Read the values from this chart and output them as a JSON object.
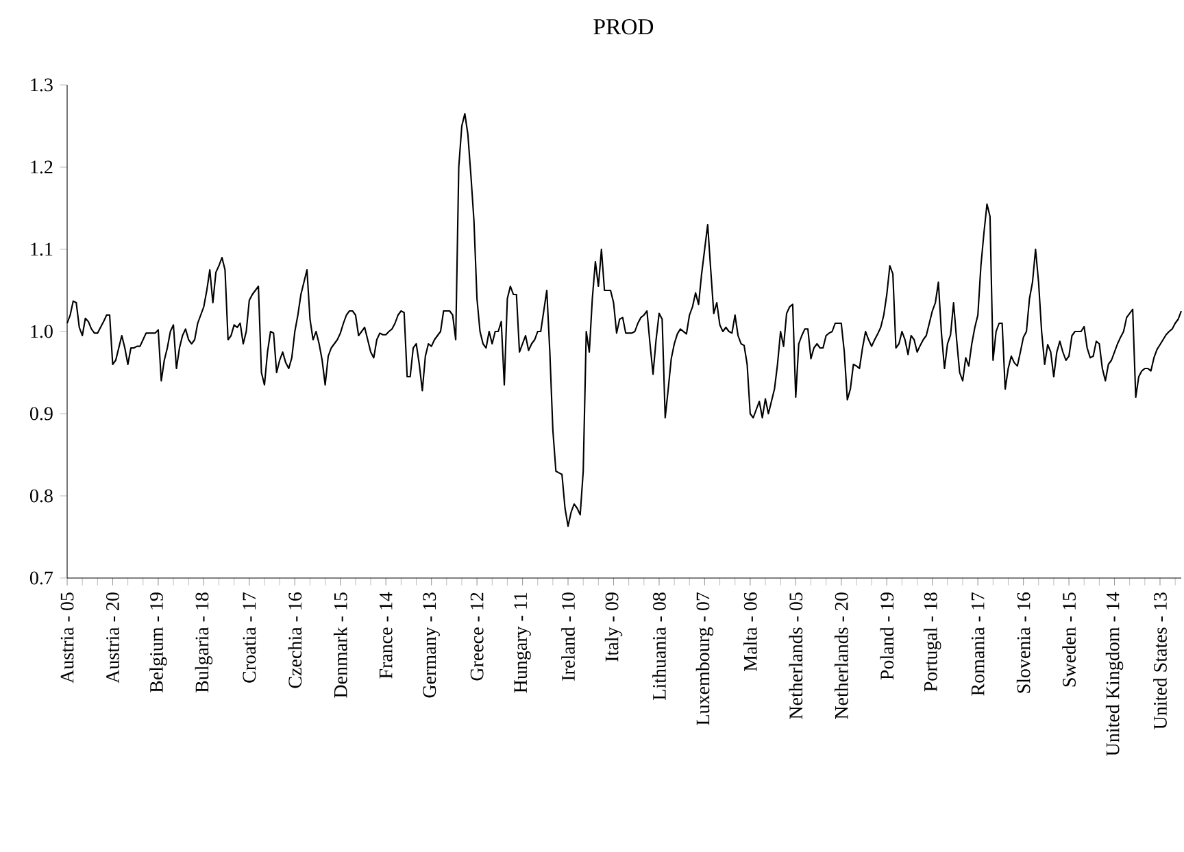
{
  "chart_data": {
    "type": "line",
    "title": "PROD",
    "color": "#000000",
    "categories": [
      "Austria - 05",
      null,
      null,
      null,
      null,
      null,
      null,
      null,
      null,
      null,
      null,
      null,
      null,
      null,
      null,
      "Austria - 20",
      null,
      null,
      null,
      null,
      null,
      null,
      null,
      null,
      null,
      null,
      null,
      null,
      null,
      null,
      "Belgium - 19",
      null,
      null,
      null,
      null,
      null,
      null,
      null,
      null,
      null,
      null,
      null,
      null,
      null,
      null,
      "Bulgaria - 18",
      null,
      null,
      null,
      null,
      null,
      null,
      null,
      null,
      null,
      null,
      null,
      null,
      null,
      null,
      "Croatia - 17",
      null,
      null,
      null,
      null,
      null,
      null,
      null,
      null,
      null,
      null,
      null,
      null,
      null,
      null,
      "Czechia - 16",
      null,
      null,
      null,
      null,
      null,
      null,
      null,
      null,
      null,
      null,
      null,
      null,
      null,
      null,
      "Denmark - 15",
      null,
      null,
      null,
      null,
      null,
      null,
      null,
      null,
      null,
      null,
      null,
      null,
      null,
      null,
      "France - 14",
      null,
      null,
      null,
      null,
      null,
      null,
      null,
      null,
      null,
      null,
      null,
      null,
      null,
      null,
      "Germany - 13",
      null,
      null,
      null,
      null,
      null,
      null,
      null,
      null,
      null,
      null,
      null,
      null,
      null,
      null,
      "Greece - 12",
      null,
      null,
      null,
      null,
      null,
      null,
      null,
      null,
      null,
      null,
      null,
      null,
      null,
      null,
      "Hungary - 11",
      null,
      null,
      null,
      null,
      null,
      null,
      null,
      null,
      null,
      null,
      null,
      null,
      null,
      null,
      "Ireland - 10",
      null,
      null,
      null,
      null,
      null,
      null,
      null,
      null,
      null,
      null,
      null,
      null,
      null,
      null,
      "Italy - 09",
      null,
      null,
      null,
      null,
      null,
      null,
      null,
      null,
      null,
      null,
      null,
      null,
      null,
      null,
      "Lithuania - 08",
      null,
      null,
      null,
      null,
      null,
      null,
      null,
      null,
      null,
      null,
      null,
      null,
      null,
      null,
      "Luxembourg - 07",
      null,
      null,
      null,
      null,
      null,
      null,
      null,
      null,
      null,
      null,
      null,
      null,
      null,
      null,
      "Malta - 06",
      null,
      null,
      null,
      null,
      null,
      null,
      null,
      null,
      null,
      null,
      null,
      null,
      null,
      null,
      "Netherlands - 05",
      null,
      null,
      null,
      null,
      null,
      null,
      null,
      null,
      null,
      null,
      null,
      null,
      null,
      null,
      "Netherlands - 20",
      null,
      null,
      null,
      null,
      null,
      null,
      null,
      null,
      null,
      null,
      null,
      null,
      null,
      null,
      "Poland - 19",
      null,
      null,
      null,
      null,
      null,
      null,
      null,
      null,
      null,
      null,
      null,
      null,
      null,
      null,
      "Portugal - 18",
      null,
      null,
      null,
      null,
      null,
      null,
      null,
      null,
      null,
      null,
      null,
      null,
      null,
      null,
      "Romania - 17",
      null,
      null,
      null,
      null,
      null,
      null,
      null,
      null,
      null,
      null,
      null,
      null,
      null,
      null,
      "Slovenia - 16",
      null,
      null,
      null,
      null,
      null,
      null,
      null,
      null,
      null,
      null,
      null,
      null,
      null,
      null,
      "Sweden - 15",
      null,
      null,
      null,
      null,
      null,
      null,
      null,
      null,
      null,
      null,
      null,
      null,
      null,
      null,
      "United Kingdom - 14",
      null,
      null,
      null,
      null,
      null,
      null,
      null,
      null,
      null,
      null,
      null,
      null,
      null,
      null,
      "United States - 13",
      null,
      null,
      null,
      null,
      null,
      null,
      null
    ],
    "values": [
      1.01,
      1.02,
      1.037,
      1.035,
      1.005,
      0.995,
      1.016,
      1.012,
      1.003,
      0.998,
      0.998,
      1.005,
      1.012,
      1.02,
      1.02,
      0.96,
      0.965,
      0.98,
      0.995,
      0.98,
      0.96,
      0.98,
      0.98,
      0.982,
      0.982,
      0.99,
      0.998,
      0.998,
      0.998,
      0.998,
      1.002,
      0.94,
      0.965,
      0.98,
      1.0,
      1.008,
      0.955,
      0.98,
      0.995,
      1.003,
      0.99,
      0.985,
      0.99,
      1.01,
      1.02,
      1.03,
      1.05,
      1.075,
      1.035,
      1.072,
      1.08,
      1.09,
      1.075,
      0.99,
      0.995,
      1.008,
      1.005,
      1.01,
      0.985,
      1.0,
      1.038,
      1.045,
      1.05,
      1.055,
      0.95,
      0.935,
      0.975,
      1.0,
      0.998,
      0.95,
      0.965,
      0.975,
      0.962,
      0.955,
      0.968,
      1.0,
      1.02,
      1.045,
      1.06,
      1.075,
      1.015,
      0.99,
      1.0,
      0.985,
      0.965,
      0.935,
      0.97,
      0.98,
      0.985,
      0.99,
      0.998,
      1.01,
      1.02,
      1.025,
      1.025,
      1.02,
      0.995,
      1.0,
      1.005,
      0.99,
      0.975,
      0.968,
      0.99,
      0.998,
      0.996,
      0.996,
      1.0,
      1.003,
      1.01,
      1.02,
      1.025,
      1.023,
      0.945,
      0.945,
      0.98,
      0.985,
      0.96,
      0.928,
      0.97,
      0.985,
      0.982,
      0.99,
      0.995,
      1.0,
      1.025,
      1.025,
      1.025,
      1.02,
      0.99,
      1.2,
      1.25,
      1.265,
      1.24,
      1.19,
      1.135,
      1.04,
      1.0,
      0.985,
      0.98,
      1.0,
      0.985,
      1.0,
      1.0,
      1.012,
      0.935,
      1.04,
      1.055,
      1.045,
      1.045,
      0.975,
      0.985,
      0.995,
      0.977,
      0.985,
      0.99,
      1.0,
      1.0,
      1.025,
      1.05,
      0.975,
      0.88,
      0.83,
      0.828,
      0.826,
      0.785,
      0.763,
      0.78,
      0.79,
      0.785,
      0.777,
      0.83,
      1.0,
      0.975,
      1.04,
      1.085,
      1.055,
      1.1,
      1.05,
      1.05,
      1.05,
      1.035,
      0.998,
      1.015,
      1.017,
      0.998,
      0.998,
      0.998,
      1.0,
      1.01,
      1.017,
      1.02,
      1.025,
      0.985,
      0.948,
      0.99,
      1.022,
      1.015,
      0.895,
      0.93,
      0.967,
      0.985,
      0.997,
      1.003,
      1.0,
      0.997,
      1.02,
      1.03,
      1.047,
      1.033,
      1.07,
      1.1,
      1.13,
      1.075,
      1.022,
      1.035,
      1.008,
      1.0,
      1.005,
      1.0,
      0.998,
      1.02,
      0.995,
      0.985,
      0.983,
      0.96,
      0.9,
      0.895,
      0.905,
      0.915,
      0.895,
      0.918,
      0.9,
      0.915,
      0.93,
      0.96,
      1.0,
      0.982,
      1.022,
      1.03,
      1.033,
      0.92,
      0.985,
      0.995,
      1.003,
      1.003,
      0.967,
      0.98,
      0.985,
      0.98,
      0.98,
      0.995,
      0.998,
      1.0,
      1.01,
      1.01,
      1.01,
      0.975,
      0.917,
      0.93,
      0.96,
      0.958,
      0.955,
      0.98,
      1.0,
      0.99,
      0.982,
      0.99,
      0.997,
      1.005,
      1.02,
      1.045,
      1.08,
      1.07,
      0.98,
      0.985,
      1.0,
      0.99,
      0.972,
      0.995,
      0.99,
      0.975,
      0.983,
      0.99,
      0.995,
      1.01,
      1.025,
      1.035,
      1.06,
      0.998,
      0.955,
      0.985,
      0.996,
      1.035,
      0.99,
      0.95,
      0.94,
      0.968,
      0.958,
      0.985,
      1.005,
      1.02,
      1.08,
      1.12,
      1.155,
      1.14,
      0.965,
      1.0,
      1.01,
      1.01,
      0.93,
      0.955,
      0.97,
      0.962,
      0.958,
      0.975,
      0.993,
      1.0,
      1.04,
      1.06,
      1.1,
      1.06,
      1.0,
      0.96,
      0.984,
      0.975,
      0.945,
      0.975,
      0.988,
      0.975,
      0.965,
      0.97,
      0.995,
      1.0,
      1.0,
      1.0,
      1.006,
      0.98,
      0.968,
      0.97,
      0.988,
      0.985,
      0.955,
      0.94,
      0.96,
      0.965,
      0.975,
      0.985,
      0.993,
      1.0,
      1.017,
      1.022,
      1.027,
      0.92,
      0.945,
      0.952,
      0.955,
      0.955,
      0.952,
      0.968,
      0.978,
      0.984,
      0.99,
      0.996,
      1.0,
      1.003,
      1.01,
      1.015,
      1.025
    ],
    "ylim": [
      0.7,
      1.3
    ],
    "yticks": [
      0.7,
      0.8,
      0.9,
      {
        "value": 1.0,
        "label": "1.0"
      },
      1.1,
      1.2,
      1.3
    ]
  }
}
